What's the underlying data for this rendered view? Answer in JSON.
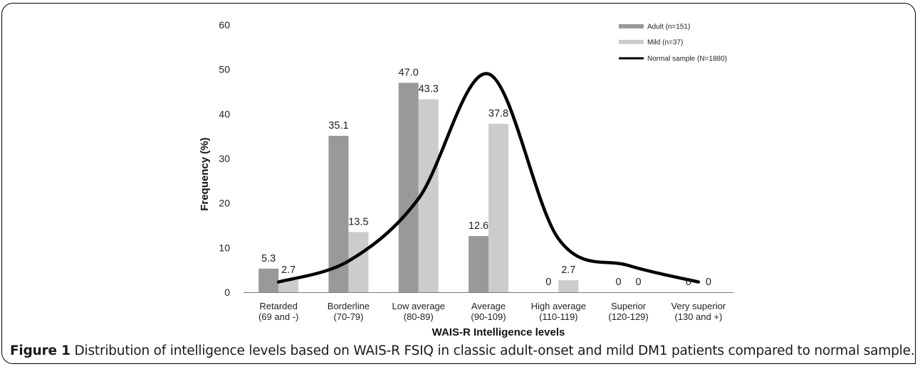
{
  "chart_data": {
    "type": "bar",
    "categories": [
      [
        "Retarded",
        "(69 and -)"
      ],
      [
        "Borderline",
        "(70-79)"
      ],
      [
        "Low average",
        "(80-89)"
      ],
      [
        "Average",
        "(90-109)"
      ],
      [
        "High average",
        "(110-119)"
      ],
      [
        "Superior",
        "(120-129)"
      ],
      [
        "Very superior",
        "(130 and +)"
      ]
    ],
    "series": [
      {
        "name": "Adult (n=151)",
        "type": "bar",
        "color": "#999999",
        "values": [
          5.3,
          35.1,
          47.0,
          12.6,
          0,
          0,
          0
        ],
        "labels": [
          "5.3",
          "35.1",
          "47.0",
          "12.6",
          "0",
          "0",
          "0"
        ]
      },
      {
        "name": "Mild (n=37)",
        "type": "bar",
        "color": "#cccccc",
        "values": [
          2.7,
          13.5,
          43.3,
          37.8,
          2.7,
          0,
          0
        ],
        "labels": [
          "2.7",
          "13.5",
          "43.3",
          "37.8",
          "2.7",
          "0",
          "0"
        ]
      },
      {
        "name": "Normal sample (N=1880)",
        "type": "line",
        "color": "#000000",
        "x": [
          0,
          1,
          2,
          3,
          4,
          5,
          6
        ],
        "values": [
          2.3,
          7.0,
          21.0,
          49.0,
          12.0,
          6.0,
          2.3
        ]
      }
    ],
    "xlabel": "WAIS-R Intelligence levels",
    "ylabel": "Frequency (%)",
    "ylim": [
      0,
      60
    ],
    "yticks": [
      "0",
      "10",
      "20",
      "30",
      "40",
      "50",
      "60"
    ],
    "grid": false,
    "legend": "top-right"
  },
  "caption": {
    "label": "Figure 1",
    "text": " Distribution of intelligence levels based on WAIS-R FSIQ in classic adult-onset and mild DM1 patients compared to normal sample."
  }
}
